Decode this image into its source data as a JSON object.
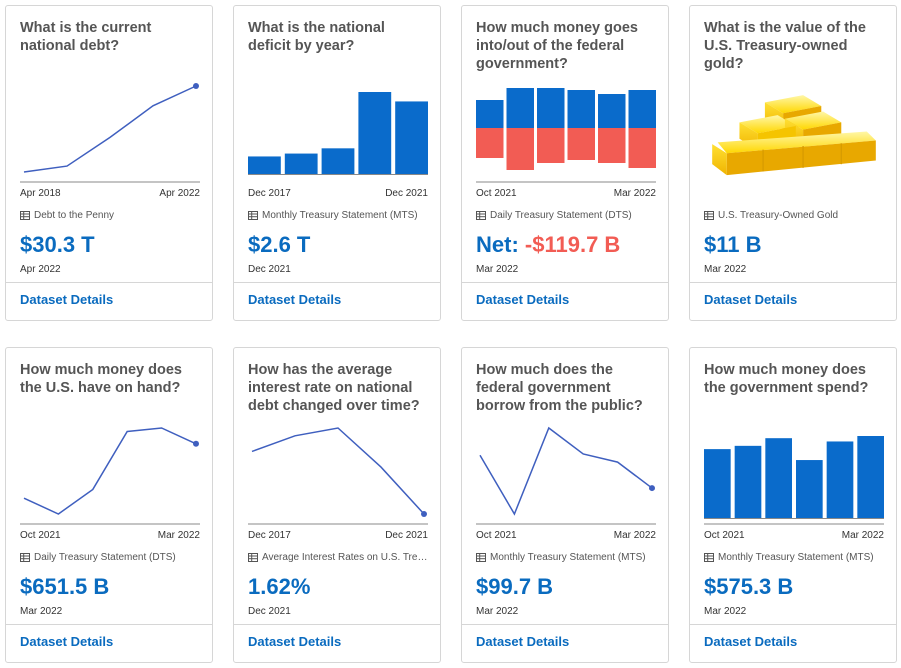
{
  "colors": {
    "accent": "#0a6bbf",
    "line": "#3f5fbf",
    "bar": "#0a6bcb",
    "negative": "#f25c54",
    "gold": "#f5c400"
  },
  "icons": {
    "source": "table-icon",
    "gold": "gold-bars-image"
  },
  "cards": [
    {
      "question": "What is the current national debt?",
      "axis_start": "Apr 2018",
      "axis_end": "Apr 2022",
      "source": "Debt to the Penny",
      "value": "$30.3 T",
      "date": "Apr 2022",
      "details_label": "Dataset Details"
    },
    {
      "question": "What is the national deficit by year?",
      "axis_start": "Dec 2017",
      "axis_end": "Dec 2021",
      "source": "Monthly Treasury Statement (MTS)",
      "value": "$2.6 T",
      "date": "Dec 2021",
      "details_label": "Dataset Details"
    },
    {
      "question": "How much money goes into/out of the federal government?",
      "axis_start": "Oct 2021",
      "axis_end": "Mar 2022",
      "source": "Daily Treasury Statement (DTS)",
      "value_label": "Net:",
      "value": "-$119.7 B",
      "date": "Mar 2022",
      "details_label": "Dataset Details"
    },
    {
      "question": "What is the value of the U.S. Treasury-owned gold?",
      "source": "U.S. Treasury-Owned Gold",
      "value": "$11 B",
      "date": "Mar 2022",
      "details_label": "Dataset Details"
    },
    {
      "question": "How much money does the U.S. have on hand?",
      "axis_start": "Oct 2021",
      "axis_end": "Mar 2022",
      "source": "Daily Treasury Statement (DTS)",
      "value": "$651.5 B",
      "date": "Mar 2022",
      "details_label": "Dataset Details"
    },
    {
      "question": "How has the average interest rate on national debt changed over time?",
      "axis_start": "Dec 2017",
      "axis_end": "Dec 2021",
      "source": "Average Interest Rates on U.S. Treasury Securities",
      "value": "1.62%",
      "date": "Dec 2021",
      "details_label": "Dataset Details"
    },
    {
      "question": "How much does the federal government borrow from the public?",
      "axis_start": "Oct 2021",
      "axis_end": "Mar 2022",
      "source": "Monthly Treasury Statement (MTS)",
      "value": "$99.7 B",
      "date": "Mar 2022",
      "details_label": "Dataset Details"
    },
    {
      "question": "How much money does the government spend?",
      "axis_start": "Oct 2021",
      "axis_end": "Mar 2022",
      "source": "Monthly Treasury Statement (MTS)",
      "value": "$575.3 B",
      "date": "Mar 2022",
      "details_label": "Dataset Details"
    }
  ],
  "chart_data": [
    {
      "type": "line",
      "card": 0,
      "values": [
        0.9,
        1.5,
        4.4,
        7.6,
        9.6
      ]
    },
    {
      "type": "bar",
      "card": 1,
      "values": [
        0.67,
        0.78,
        0.98,
        3.13,
        2.77
      ]
    },
    {
      "type": "bar",
      "card": 2,
      "series": [
        {
          "values": [
            2.8,
            4.0,
            4.0,
            3.8,
            3.4,
            3.8
          ]
        },
        {
          "values": [
            -3.0,
            -4.2,
            -3.5,
            -3.2,
            -3.5,
            -4.0
          ]
        }
      ]
    },
    {
      "type": "line",
      "card": 4,
      "values": [
        1.1,
        0.2,
        1.6,
        4.9,
        5.1,
        4.2
      ]
    },
    {
      "type": "line",
      "card": 5,
      "values": [
        2.4,
        2.6,
        2.7,
        2.2,
        1.6
      ]
    },
    {
      "type": "line",
      "card": 6,
      "values": [
        4.9,
        0.6,
        6.9,
        5.0,
        4.4,
        2.5
      ]
    },
    {
      "type": "bar",
      "card": 7,
      "values": [
        6.3,
        6.6,
        7.3,
        5.3,
        7.0,
        7.5
      ]
    }
  ]
}
